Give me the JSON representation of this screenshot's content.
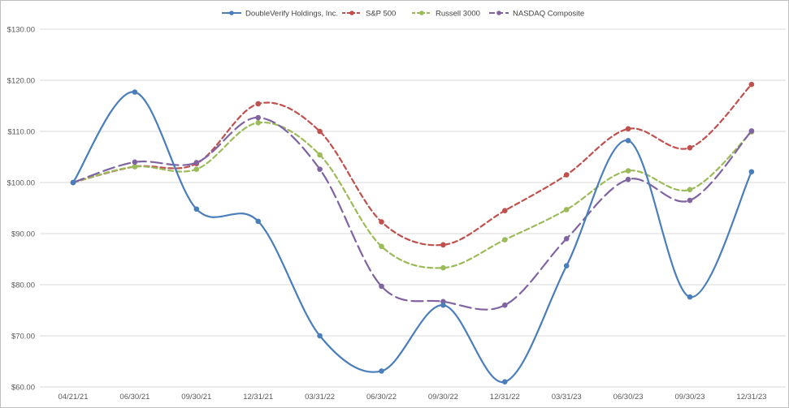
{
  "chart_data": {
    "type": "line",
    "title": "",
    "xlabel": "",
    "ylabel": "",
    "ylim": [
      60,
      130
    ],
    "yticks": [
      60,
      70,
      80,
      90,
      100,
      110,
      120,
      130
    ],
    "ytick_labels": [
      "$60.00",
      "$70.00",
      "$80.00",
      "$90.00",
      "$100.00",
      "$110.00",
      "$120.00",
      "$130.00"
    ],
    "grid": true,
    "legend_position": "top-center",
    "categories": [
      "04/21/21",
      "06/30/21",
      "09/30/21",
      "12/31/21",
      "03/31/22",
      "06/30/22",
      "09/30/22",
      "12/31/22",
      "03/31/23",
      "06/30/23",
      "09/30/23",
      "12/31/23"
    ],
    "series": [
      {
        "name": "DoubleVerify Holdings, Inc.",
        "color": "#4a7ebb",
        "style": "solid",
        "values": [
          100.0,
          117.7,
          94.8,
          92.4,
          70.0,
          63.1,
          76.0,
          61.0,
          83.7,
          108.2,
          77.6,
          102.1
        ]
      },
      {
        "name": "S&P 500",
        "color": "#c0504d",
        "style": "dash",
        "values": [
          100.0,
          103.1,
          103.7,
          115.4,
          110.0,
          92.3,
          87.8,
          94.5,
          101.5,
          110.5,
          106.8,
          119.2
        ]
      },
      {
        "name": "Russell 3000",
        "color": "#9bbb59",
        "style": "dash",
        "values": [
          100.0,
          103.1,
          102.6,
          111.7,
          105.4,
          87.5,
          83.3,
          88.8,
          94.7,
          102.3,
          98.6,
          109.9
        ]
      },
      {
        "name": "NASDAQ Composite",
        "color": "#8064a2",
        "style": "longdash",
        "values": [
          100.0,
          104.0,
          103.9,
          112.7,
          102.6,
          79.7,
          76.7,
          76.0,
          89.0,
          100.6,
          96.5,
          110.1
        ]
      }
    ]
  }
}
